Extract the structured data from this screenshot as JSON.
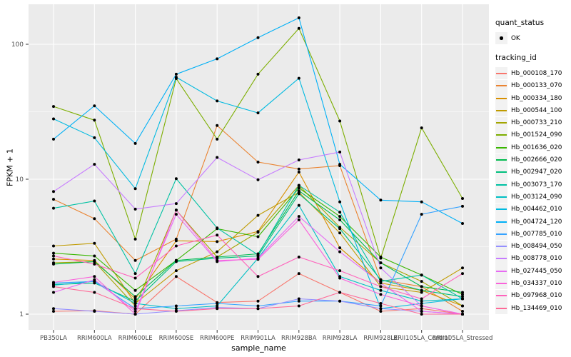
{
  "chart_data": {
    "type": "line",
    "title": "",
    "xlabel": "sample_name",
    "ylabel": "FPKM + 1",
    "y_scale": "log10",
    "yticks": [
      1,
      10,
      100
    ],
    "ylim": [
      0.77,
      198
    ],
    "grid": "on",
    "legend_position": "right",
    "legend": {
      "quant_status_title": "quant_status",
      "ok_label": "OK",
      "tracking_id_title": "tracking_id"
    },
    "marker": {
      "shape": "point",
      "color": "#000000"
    },
    "style": {
      "panel_background": "#EBEBEB",
      "gridline_color": "#FFFFFF",
      "axis_text_color": "#4D4D4D",
      "axis_title_color": "#000000",
      "tick_color": "#333333",
      "legend_key_background": "#F2F2F2"
    },
    "categories": [
      "PB350LA",
      "RRIM600LA",
      "RRIM600LE",
      "RRIM600SE",
      "RRIM600PE",
      "RRIM901LA",
      "RRIM928BA",
      "RRIM928LA",
      "RRIM928LE",
      "RRII105LA_Control",
      "RRII105LA_Stressed"
    ],
    "series": [
      {
        "name": "Hb_000108_170",
        "color": "#F8766D",
        "values": [
          1.05,
          1.06,
          1.0,
          1.9,
          1.22,
          1.25,
          2.0,
          1.45,
          1.05,
          1.1,
          1.0
        ]
      },
      {
        "name": "Hb_000133_070",
        "color": "#EA8331",
        "values": [
          7.1,
          5.1,
          2.5,
          3.6,
          25,
          13.4,
          11.9,
          12.6,
          1.8,
          1.6,
          1.05
        ]
      },
      {
        "name": "Hb_000334_180",
        "color": "#D89000",
        "values": [
          2.56,
          2.5,
          1.3,
          3.5,
          3.45,
          4.1,
          11.3,
          3.1,
          1.7,
          1.5,
          1.15
        ]
      },
      {
        "name": "Hb_000544_100",
        "color": "#C09B00",
        "values": [
          3.2,
          3.35,
          1.2,
          2.1,
          2.9,
          5.4,
          8.0,
          4.0,
          1.6,
          1.45,
          2.2
        ]
      },
      {
        "name": "Hb_000733_210",
        "color": "#A3A500",
        "values": [
          2.4,
          2.45,
          1.15,
          5.9,
          2.65,
          4.05,
          9.0,
          4.4,
          2.4,
          1.75,
          1.15
        ]
      },
      {
        "name": "Hb_001524_090",
        "color": "#7CAE00",
        "values": [
          34.6,
          27.4,
          3.6,
          55.7,
          19.8,
          60,
          131,
          27,
          2.6,
          24,
          7.2
        ]
      },
      {
        "name": "Hb_001636_020",
        "color": "#39B600",
        "values": [
          2.83,
          2.7,
          1.5,
          2.5,
          4.3,
          3.75,
          8.6,
          5.3,
          2.65,
          1.95,
          1.4
        ]
      },
      {
        "name": "Hb_002666_020",
        "color": "#00BB4E",
        "values": [
          2.35,
          2.45,
          1.35,
          2.5,
          2.65,
          2.8,
          8.2,
          5.0,
          2.4,
          1.6,
          1.45
        ]
      },
      {
        "name": "Hb_002947_020",
        "color": "#00BF7D",
        "values": [
          1.66,
          1.7,
          1.25,
          2.45,
          2.6,
          2.7,
          7.8,
          4.3,
          1.8,
          1.5,
          1.35
        ]
      },
      {
        "name": "Hb_003073_170",
        "color": "#00C1A3",
        "values": [
          6.1,
          6.9,
          2.0,
          10.1,
          4.35,
          2.75,
          9.0,
          5.7,
          1.75,
          1.95,
          1.3
        ]
      },
      {
        "name": "Hb_003124_090",
        "color": "#00BFC4",
        "values": [
          1.64,
          1.75,
          1.2,
          1.1,
          1.15,
          2.6,
          6.4,
          1.9,
          1.5,
          1.25,
          1.3
        ]
      },
      {
        "name": "Hb_004462_010",
        "color": "#00BAE0",
        "values": [
          28,
          20.3,
          8.5,
          57,
          38,
          31,
          56,
          6.8,
          1.1,
          1.2,
          1.3
        ]
      },
      {
        "name": "Hb_004724_120",
        "color": "#00B0F6",
        "values": [
          19.8,
          35,
          18.4,
          60,
          78,
          112,
          157,
          12.9,
          7.0,
          6.8,
          4.7
        ]
      },
      {
        "name": "Hb_007785_010",
        "color": "#35A2FF",
        "values": [
          1.7,
          1.75,
          1.1,
          1.15,
          1.2,
          1.15,
          1.25,
          1.25,
          1.15,
          5.5,
          6.3
        ]
      },
      {
        "name": "Hb_008494_050",
        "color": "#9590FF",
        "values": [
          1.1,
          1.05,
          1.0,
          1.06,
          1.12,
          1.1,
          1.3,
          1.25,
          1.1,
          1.05,
          1.0
        ]
      },
      {
        "name": "Hb_008778_010",
        "color": "#C77CFF",
        "values": [
          8.1,
          12.9,
          6.0,
          6.6,
          14.5,
          9.9,
          13.9,
          15.9,
          2.2,
          1.15,
          1.0
        ]
      },
      {
        "name": "Hb_027445_050",
        "color": "#E76BF3",
        "values": [
          1.45,
          1.8,
          1.05,
          5.5,
          2.45,
          2.6,
          5.3,
          2.9,
          1.7,
          1.05,
          1.0
        ]
      },
      {
        "name": "Hb_034337_010",
        "color": "#FA62DB",
        "values": [
          1.72,
          1.9,
          1.0,
          5.9,
          2.5,
          2.55,
          5.0,
          1.85,
          1.4,
          1.15,
          1.0
        ]
      },
      {
        "name": "Hb_097968_010",
        "color": "#FF62BC",
        "values": [
          2.7,
          2.35,
          1.85,
          3.2,
          3.85,
          1.9,
          2.65,
          2.1,
          1.6,
          1.3,
          2.0
        ]
      },
      {
        "name": "Hb_134469_010",
        "color": "#FF6A98",
        "values": [
          1.6,
          1.45,
          1.1,
          1.05,
          1.1,
          1.1,
          1.15,
          1.45,
          1.2,
          1.0,
          1.0
        ]
      }
    ]
  }
}
